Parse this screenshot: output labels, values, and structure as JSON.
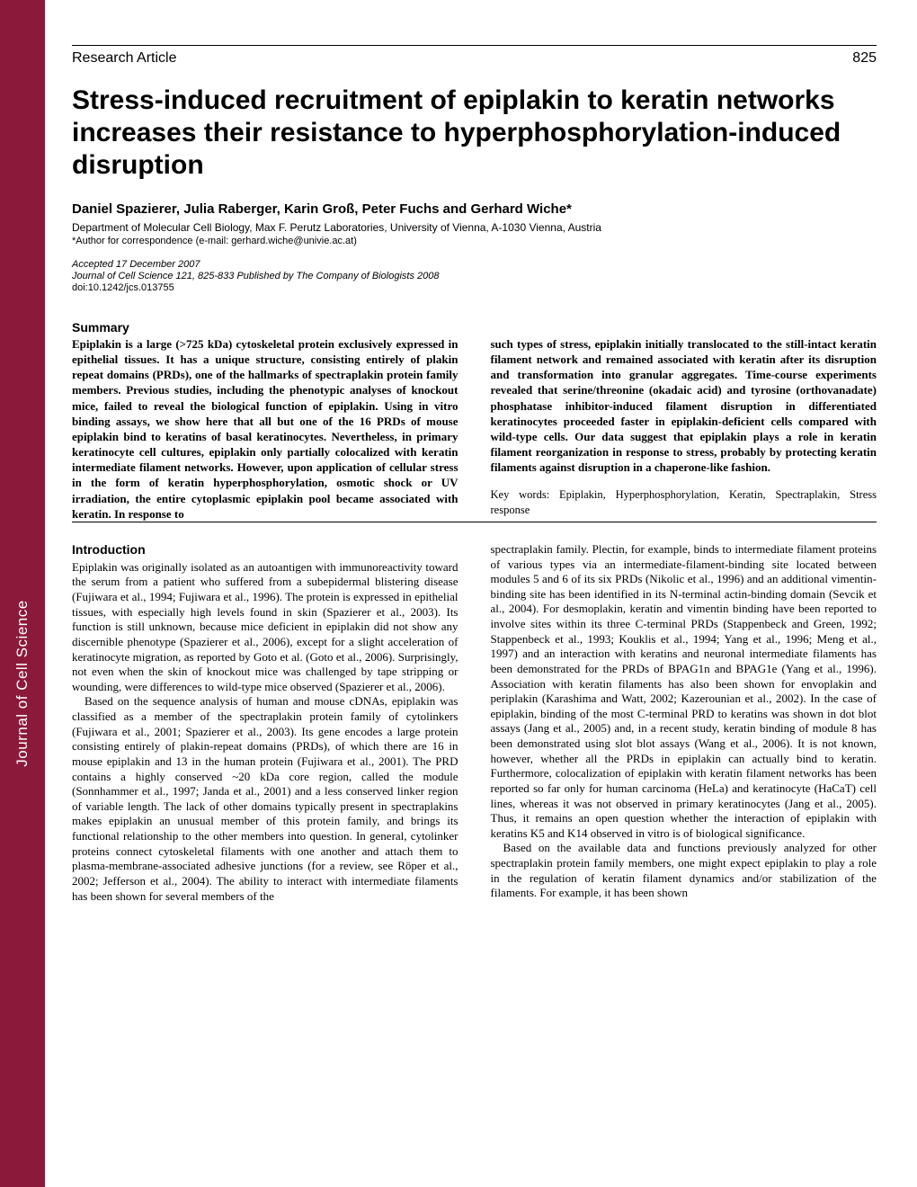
{
  "sidebar": {
    "journal_name": "Journal of Cell Science"
  },
  "header": {
    "article_type": "Research Article",
    "page_number": "825"
  },
  "title": "Stress-induced recruitment of epiplakin to keratin networks increases their resistance to hyperphosphorylation-induced disruption",
  "authors": "Daniel Spazierer, Julia Raberger, Karin Groß, Peter Fuchs and Gerhard Wiche*",
  "affiliation": "Department of Molecular Cell Biology, Max F. Perutz Laboratories, University of Vienna, A-1030 Vienna, Austria",
  "correspondence": "*Author for correspondence (e-mail: gerhard.wiche@univie.ac.at)",
  "accepted": "Accepted 17 December 2007",
  "journal_info": "Journal of Cell Science 121, 825-833 Published by The Company of Biologists 2008",
  "doi": "doi:10.1242/jcs.013755",
  "summary": {
    "heading": "Summary",
    "left": "Epiplakin is a large (>725 kDa) cytoskeletal protein exclusively expressed in epithelial tissues. It has a unique structure, consisting entirely of plakin repeat domains (PRDs), one of the hallmarks of spectraplakin protein family members. Previous studies, including the phenotypic analyses of knockout mice, failed to reveal the biological function of epiplakin. Using in vitro binding assays, we show here that all but one of the 16 PRDs of mouse epiplakin bind to keratins of basal keratinocytes. Nevertheless, in primary keratinocyte cell cultures, epiplakin only partially colocalized with keratin intermediate filament networks. However, upon application of cellular stress in the form of keratin hyperphosphorylation, osmotic shock or UV irradiation, the entire cytoplasmic epiplakin pool became associated with keratin. In response to",
    "right": "such types of stress, epiplakin initially translocated to the still-intact keratin filament network and remained associated with keratin after its disruption and transformation into granular aggregates. Time-course experiments revealed that serine/threonine (okadaic acid) and tyrosine (orthovanadate) phosphatase inhibitor-induced filament disruption in differentiated keratinocytes proceeded faster in epiplakin-deficient cells compared with wild-type cells. Our data suggest that epiplakin plays a role in keratin filament reorganization in response to stress, probably by protecting keratin filaments against disruption in a chaperone-like fashion.",
    "keywords": "Key words: Epiplakin, Hyperphosphorylation, Keratin, Spectraplakin, Stress response"
  },
  "body": {
    "intro_heading": "Introduction",
    "left_p1": "Epiplakin was originally isolated as an autoantigen with immunoreactivity toward the serum from a patient who suffered from a subepidermal blistering disease (Fujiwara et al., 1994; Fujiwara et al., 1996). The protein is expressed in epithelial tissues, with especially high levels found in skin (Spazierer et al., 2003). Its function is still unknown, because mice deficient in epiplakin did not show any discernible phenotype (Spazierer et al., 2006), except for a slight acceleration of keratinocyte migration, as reported by Goto et al. (Goto et al., 2006). Surprisingly, not even when the skin of knockout mice was challenged by tape stripping or wounding, were differences to wild-type mice observed (Spazierer et al., 2006).",
    "left_p2": "Based on the sequence analysis of human and mouse cDNAs, epiplakin was classified as a member of the spectraplakin protein family of cytolinkers (Fujiwara et al., 2001; Spazierer et al., 2003). Its gene encodes a large protein consisting entirely of plakin-repeat domains (PRDs), of which there are 16 in mouse epiplakin and 13 in the human protein (Fujiwara et al., 2001). The PRD contains a highly conserved ~20 kDa core region, called the module (Sonnhammer et al., 1997; Janda et al., 2001) and a less conserved linker region of variable length. The lack of other domains typically present in spectraplakins makes epiplakin an unusual member of this protein family, and brings its functional relationship to the other members into question. In general, cytolinker proteins connect cytoskeletal filaments with one another and attach them to plasma-membrane-associated adhesive junctions (for a review, see Röper et al., 2002; Jefferson et al., 2004). The ability to interact with intermediate filaments has been shown for several members of the",
    "right_p1": "spectraplakin family. Plectin, for example, binds to intermediate filament proteins of various types via an intermediate-filament-binding site located between modules 5 and 6 of its six PRDs (Nikolic et al., 1996) and an additional vimentin-binding site has been identified in its N-terminal actin-binding domain (Sevcik et al., 2004). For desmoplakin, keratin and vimentin binding have been reported to involve sites within its three C-terminal PRDs (Stappenbeck and Green, 1992; Stappenbeck et al., 1993; Kouklis et al., 1994; Yang et al., 1996; Meng et al., 1997) and an interaction with keratins and neuronal intermediate filaments has been demonstrated for the PRDs of BPAG1n and BPAG1e (Yang et al., 1996). Association with keratin filaments has also been shown for envoplakin and periplakin (Karashima and Watt, 2002; Kazerounian et al., 2002). In the case of epiplakin, binding of the most C-terminal PRD to keratins was shown in dot blot assays (Jang et al., 2005) and, in a recent study, keratin binding of module 8 has been demonstrated using slot blot assays (Wang et al., 2006). It is not known, however, whether all the PRDs in epiplakin can actually bind to keratin. Furthermore, colocalization of epiplakin with keratin filament networks has been reported so far only for human carcinoma (HeLa) and keratinocyte (HaCaT) cell lines, whereas it was not observed in primary keratinocytes (Jang et al., 2005). Thus, it remains an open question whether the interaction of epiplakin with keratins K5 and K14 observed in vitro is of biological significance.",
    "right_p2": "Based on the available data and functions previously analyzed for other spectraplakin protein family members, one might expect epiplakin to play a role in the regulation of keratin filament dynamics and/or stabilization of the filaments. For example, it has been shown"
  },
  "colors": {
    "sidebar_bg": "#8b1a3a",
    "text": "#000000",
    "bg": "#ffffff"
  }
}
